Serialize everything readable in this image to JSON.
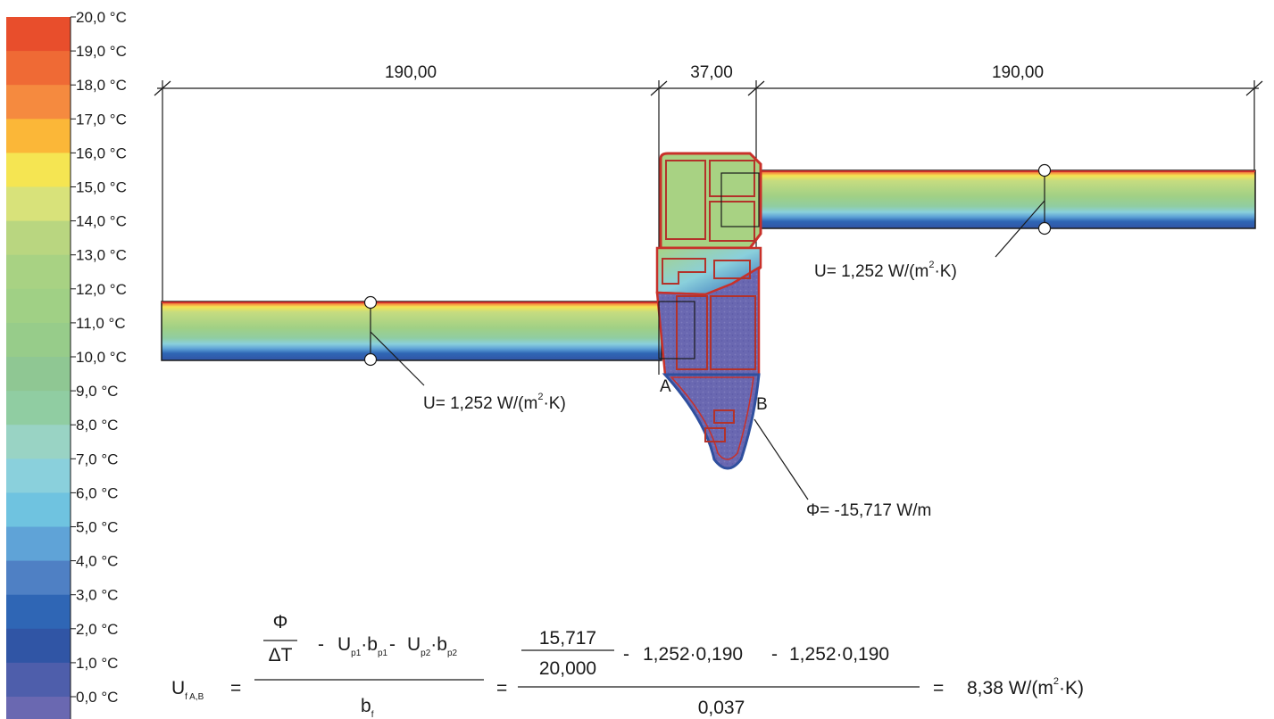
{
  "legend": {
    "unit_suffix": "°C",
    "items": [
      {
        "label": "20,0",
        "color": "#e84e2c"
      },
      {
        "label": "19,0",
        "color": "#ef6a35"
      },
      {
        "label": "18,0",
        "color": "#f58a3f"
      },
      {
        "label": "17,0",
        "color": "#fbb738"
      },
      {
        "label": "16,0",
        "color": "#f5e552"
      },
      {
        "label": "15,0",
        "color": "#d8e27a"
      },
      {
        "label": "14,0",
        "color": "#b9d680"
      },
      {
        "label": "13,0",
        "color": "#a8d283"
      },
      {
        "label": "12,0",
        "color": "#a0d085"
      },
      {
        "label": "11,0",
        "color": "#97cc8a"
      },
      {
        "label": "10,0",
        "color": "#8fc793"
      },
      {
        "label": "9,0",
        "color": "#90cda2"
      },
      {
        "label": "8,0",
        "color": "#99d3c4"
      },
      {
        "label": "7,0",
        "color": "#8ad0dc"
      },
      {
        "label": "6,0",
        "color": "#6fc3e0"
      },
      {
        "label": "5,0",
        "color": "#5fa3d7"
      },
      {
        "label": "4,0",
        "color": "#4f80c4"
      },
      {
        "label": "3,0",
        "color": "#2f66b5"
      },
      {
        "label": "2,0",
        "color": "#3055a5"
      },
      {
        "label": "1,0",
        "color": "#4e5eab"
      },
      {
        "label": "0,0",
        "color": "#6a68b1"
      }
    ]
  },
  "dimensions": {
    "left": "190,00",
    "middle": "37,00",
    "right": "190,00"
  },
  "points": {
    "a": "A",
    "b": "B"
  },
  "annotations": {
    "u_left": {
      "symbol": "U",
      "text": "= 1,252 W/(m",
      "sup": "2",
      "tail": "·K)"
    },
    "u_right": {
      "symbol": "U",
      "text": "= 1,252 W/(m",
      "sup": "2",
      "tail": "·K)"
    },
    "phi": {
      "symbol": "Φ",
      "text": "= -15,717 W/m"
    }
  },
  "formula": {
    "lhs": "U",
    "lhs_sub": "f A,B",
    "eq": "=",
    "phi": "Φ",
    "dT": "ΔT",
    "minus": "-",
    "u": "U",
    "b": "b",
    "p1": "p1",
    "p2": "p2",
    "f": "f",
    "dot": "·",
    "num_val": "15,717",
    "den_val": "20,000",
    "term": "1,252·0,190",
    "bf_val": "0,037",
    "result": "8,38 W/(m",
    "result_sup": "2",
    "result_tail": "·K)"
  }
}
